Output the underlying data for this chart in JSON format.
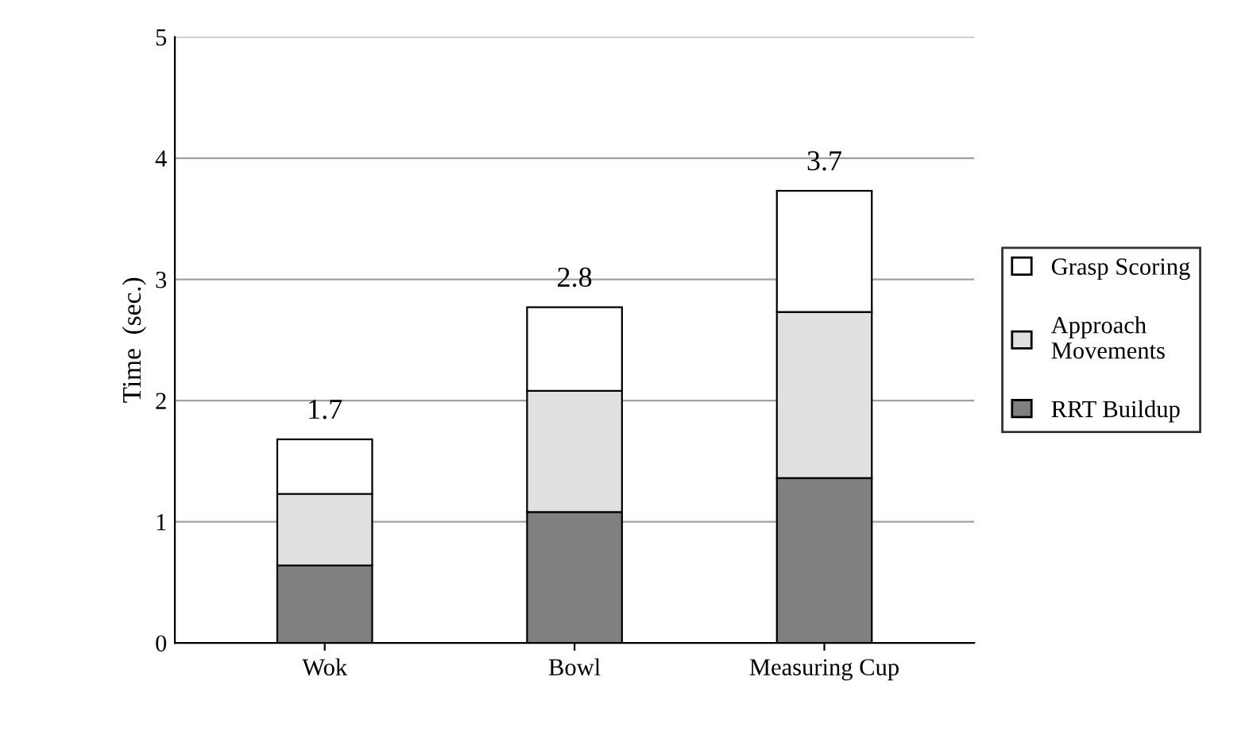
{
  "chart_data": {
    "type": "bar",
    "stacked": true,
    "ylabel": "Time  (sec.)",
    "categories": [
      "Wok",
      "Bowl",
      "Measuring Cup"
    ],
    "series": [
      {
        "name": "RRT Buildup",
        "color": "#808080",
        "values": [
          0.64,
          1.08,
          1.36
        ]
      },
      {
        "name": "Approach Movements",
        "color": "#e0e0e0",
        "values": [
          0.59,
          1.0,
          1.37
        ]
      },
      {
        "name": "Grasp Scoring",
        "color": "#ffffff",
        "values": [
          0.45,
          0.69,
          1.0
        ]
      }
    ],
    "totals": [
      "1.7",
      "2.8",
      "3.7"
    ],
    "ylim": [
      0,
      5
    ],
    "yticks": [
      0,
      1,
      2,
      3,
      4,
      5
    ],
    "grid": "y",
    "legend": "right"
  }
}
